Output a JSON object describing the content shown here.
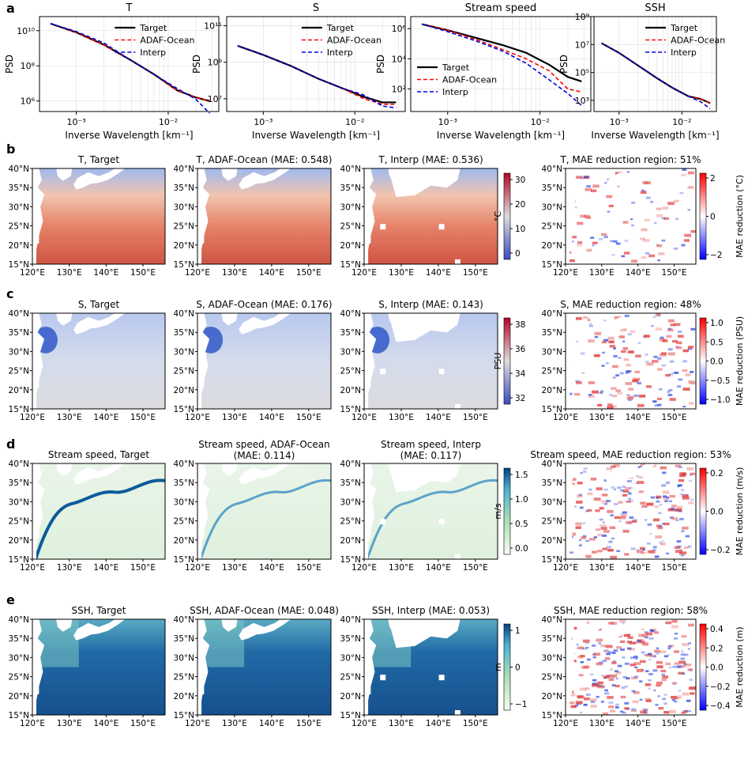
{
  "panel_letters": [
    "a",
    "b",
    "c",
    "d",
    "e"
  ],
  "psd": {
    "xlabel": "Inverse Wavelength [km⁻¹]",
    "ylabel": "PSD",
    "xticks": [
      "10⁻³",
      "10⁻²"
    ],
    "plots": [
      {
        "title": "T",
        "legend": [
          "Target",
          "ADAF-Ocean",
          "Interp"
        ],
        "yticks": [
          "10¹⁰",
          "10⁸",
          "10⁶"
        ]
      },
      {
        "title": "S",
        "legend": [
          "Target",
          "ADAF-Ocean",
          "Interp"
        ],
        "yticks": [
          "10¹¹",
          "10⁹",
          "10⁷"
        ]
      },
      {
        "title": "Stream speed",
        "legend": [
          "Target",
          "ADAF-Ocean",
          "Interp"
        ],
        "yticks": [
          "10⁶",
          "10⁴",
          "10²"
        ]
      },
      {
        "title": "SSH",
        "legend": [
          "Target",
          "ADAF-Ocean",
          "Interp"
        ],
        "yticks": [
          "10⁹",
          "10⁷",
          "10⁵",
          "10³"
        ]
      }
    ]
  },
  "map_axes": {
    "lat_labels": [
      "40°N",
      "35°N",
      "30°N",
      "25°N",
      "20°N",
      "15°N"
    ],
    "lon_labels": [
      "120°E",
      "130°E",
      "140°E",
      "150°E"
    ]
  },
  "rows": [
    {
      "titles": [
        "T, Target",
        "T, ADAF-Ocean (MAE: 0.548)",
        "T, Interp (MAE: 0.536)",
        "T, MAE reduction region: 51%"
      ],
      "cbar1": {
        "label": "°C",
        "ticks": [
          "30",
          "20",
          "10",
          "0"
        ]
      },
      "cbar2": {
        "label": "MAE reduction (°C)",
        "ticks": [
          "2",
          "0",
          "−2"
        ]
      }
    },
    {
      "titles": [
        "S, Target",
        "S, ADAF-Ocean (MAE: 0.176)",
        "S, Interp (MAE: 0.143)",
        "S, MAE reduction region: 48%"
      ],
      "cbar1": {
        "label": "PSU",
        "ticks": [
          "38",
          "36",
          "34",
          "32"
        ]
      },
      "cbar2": {
        "label": "MAE reduction (PSU)",
        "ticks": [
          "1.0",
          "0.5",
          "0.0",
          "−0.5",
          "−1.0"
        ]
      }
    },
    {
      "titles": [
        "Stream speed, Target",
        "Stream speed, ADAF-Ocean",
        "Stream speed, Interp",
        "Stream speed, MAE reduction region: 53%"
      ],
      "subtitles": [
        "",
        "(MAE: 0.114)",
        "(MAE: 0.117)",
        ""
      ],
      "cbar1": {
        "label": "m/s",
        "ticks": [
          "1.5",
          "1.0",
          "0.5",
          "0.0"
        ]
      },
      "cbar2": {
        "label": "MAE reduction (m/s)",
        "ticks": [
          "0.2",
          "0.0",
          "−0.2"
        ]
      }
    },
    {
      "titles": [
        "SSH, Target",
        "SSH, ADAF-Ocean (MAE: 0.048)",
        "SSH, Interp (MAE: 0.053)",
        "SSH, MAE reduction region: 58%"
      ],
      "cbar1": {
        "label": "m",
        "ticks": [
          "1",
          "0",
          "−1"
        ]
      },
      "cbar2": {
        "label": "MAE reduction (m)",
        "ticks": [
          "0.4",
          "0.2",
          "0.0",
          "−0.2",
          "−0.4"
        ]
      }
    }
  ],
  "chart_data": [
    {
      "type": "line",
      "title": "T",
      "xlabel": "Inverse Wavelength [km⁻¹]",
      "ylabel": "PSD",
      "x_log10": [
        -3.28,
        -3.0,
        -2.7,
        -2.4,
        -2.15,
        -1.9,
        -1.7,
        -1.55
      ],
      "series": [
        {
          "name": "Target",
          "log10_values": [
            10.4,
            9.9,
            9.2,
            8.3,
            7.5,
            6.6,
            6.2,
            6.0
          ]
        },
        {
          "name": "ADAF-Ocean",
          "log10_values": [
            10.4,
            9.9,
            9.2,
            8.3,
            7.5,
            6.6,
            6.2,
            6.0
          ]
        },
        {
          "name": "Interp",
          "log10_values": [
            10.4,
            9.95,
            9.3,
            8.3,
            7.5,
            6.7,
            6.1,
            5.3
          ]
        }
      ]
    },
    {
      "type": "line",
      "title": "S",
      "xlabel": "Inverse Wavelength [km⁻¹]",
      "ylabel": "PSD",
      "x_log10": [
        -3.28,
        -3.0,
        -2.7,
        -2.4,
        -2.15,
        -1.9,
        -1.7,
        -1.55
      ],
      "series": [
        {
          "name": "Target",
          "log10_values": [
            9.9,
            9.4,
            8.8,
            8.1,
            7.6,
            7.1,
            6.8,
            6.8
          ]
        },
        {
          "name": "ADAF-Ocean",
          "log10_values": [
            9.9,
            9.4,
            8.8,
            8.1,
            7.6,
            7.0,
            6.7,
            6.7
          ]
        },
        {
          "name": "Interp",
          "log10_values": [
            9.9,
            9.4,
            8.8,
            8.1,
            7.6,
            7.2,
            6.6,
            6.5
          ]
        }
      ]
    },
    {
      "type": "line",
      "title": "Stream speed",
      "xlabel": "Inverse Wavelength [km⁻¹]",
      "ylabel": "PSD",
      "x_log10": [
        -3.28,
        -3.0,
        -2.7,
        -2.4,
        -2.15,
        -1.9,
        -1.7,
        -1.55
      ],
      "series": [
        {
          "name": "Target",
          "log10_values": [
            6.3,
            5.9,
            5.4,
            4.9,
            4.4,
            3.6,
            2.8,
            2.5
          ]
        },
        {
          "name": "ADAF-Ocean",
          "log10_values": [
            6.3,
            5.9,
            5.3,
            4.6,
            4.0,
            3.2,
            2.0,
            1.8
          ]
        },
        {
          "name": "Interp",
          "log10_values": [
            6.3,
            5.8,
            5.2,
            4.5,
            3.7,
            2.6,
            1.7,
            0.9
          ]
        }
      ]
    },
    {
      "type": "line",
      "title": "SSH",
      "xlabel": "Inverse Wavelength [km⁻¹]",
      "ylabel": "PSD",
      "x_log10": [
        -3.28,
        -3.0,
        -2.7,
        -2.4,
        -2.15,
        -1.9,
        -1.7,
        -1.55
      ],
      "series": [
        {
          "name": "Target",
          "log10_values": [
            7.1,
            6.4,
            5.5,
            4.6,
            3.9,
            3.3,
            3.1,
            2.8
          ]
        },
        {
          "name": "ADAF-Ocean",
          "log10_values": [
            7.1,
            6.4,
            5.5,
            4.6,
            3.9,
            3.3,
            3.1,
            2.8
          ]
        },
        {
          "name": "Interp",
          "log10_values": [
            7.1,
            6.4,
            5.5,
            4.6,
            3.9,
            3.3,
            2.9,
            2.4
          ]
        }
      ]
    }
  ],
  "colors": {
    "target": "#000000",
    "adaf": "#ff0000",
    "interp": "#0000dd",
    "land": "#ffffff"
  }
}
